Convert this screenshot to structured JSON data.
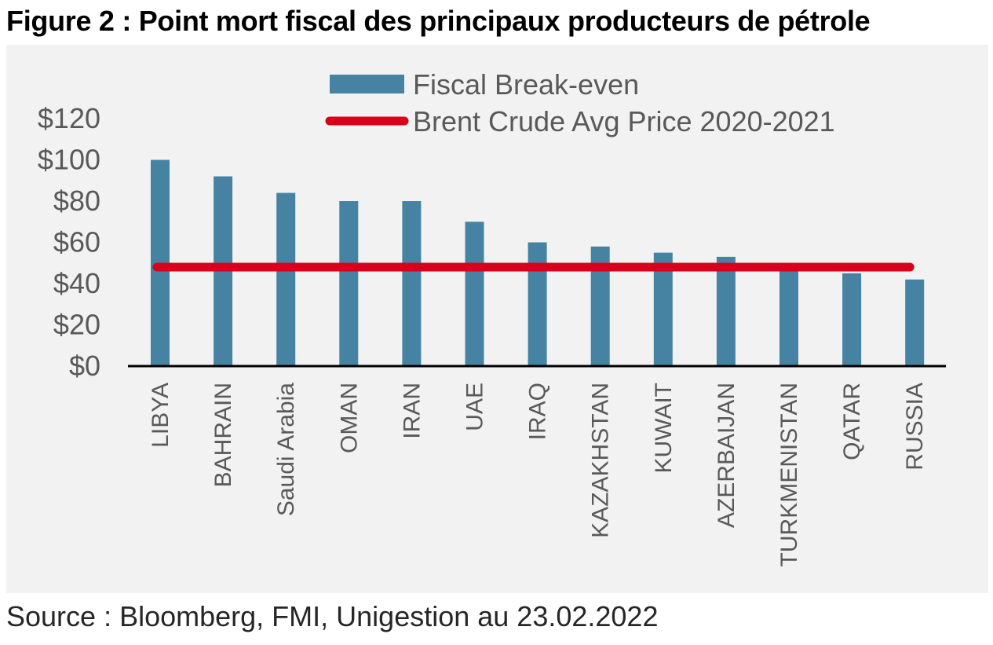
{
  "figure": {
    "title": "Figure 2 : Point mort fiscal des principaux producteurs de pétrole",
    "source": "Source : Bloomberg, FMI, Unigestion au 23.02.2022"
  },
  "colors": {
    "bar": "#4683a3",
    "line": "#d9001b",
    "background": "#f2f2f2",
    "axis": "#000000",
    "text": "#595959"
  },
  "chart_data": {
    "type": "bar",
    "title": "",
    "xlabel": "",
    "ylabel": "",
    "ylim": [
      0,
      120
    ],
    "yticks": [
      0,
      20,
      40,
      60,
      80,
      100,
      120
    ],
    "ytick_labels": [
      "$0",
      "$20",
      "$40",
      "$60",
      "$80",
      "$100",
      "$120"
    ],
    "grid": false,
    "legend_position": "top-center",
    "categories": [
      "LIBYA",
      "BAHRAIN",
      "Saudi Arabia",
      "OMAN",
      "IRAN",
      "UAE",
      "IRAQ",
      "KAZAKHSTAN",
      "KUWAIT",
      "AZERBAIJAN",
      "TURKMENISTAN",
      "QATAR",
      "RUSSIA"
    ],
    "series": [
      {
        "name": "Fiscal Break-even",
        "type": "bar",
        "color": "#4683a3",
        "values": [
          100,
          92,
          84,
          80,
          80,
          70,
          60,
          58,
          55,
          53,
          50,
          45,
          42
        ]
      },
      {
        "name": "Brent Crude Avg Price 2020-2021",
        "type": "line",
        "color": "#d9001b",
        "values": [
          48,
          48,
          48,
          48,
          48,
          48,
          48,
          48,
          48,
          48,
          48,
          48,
          48
        ]
      }
    ]
  }
}
